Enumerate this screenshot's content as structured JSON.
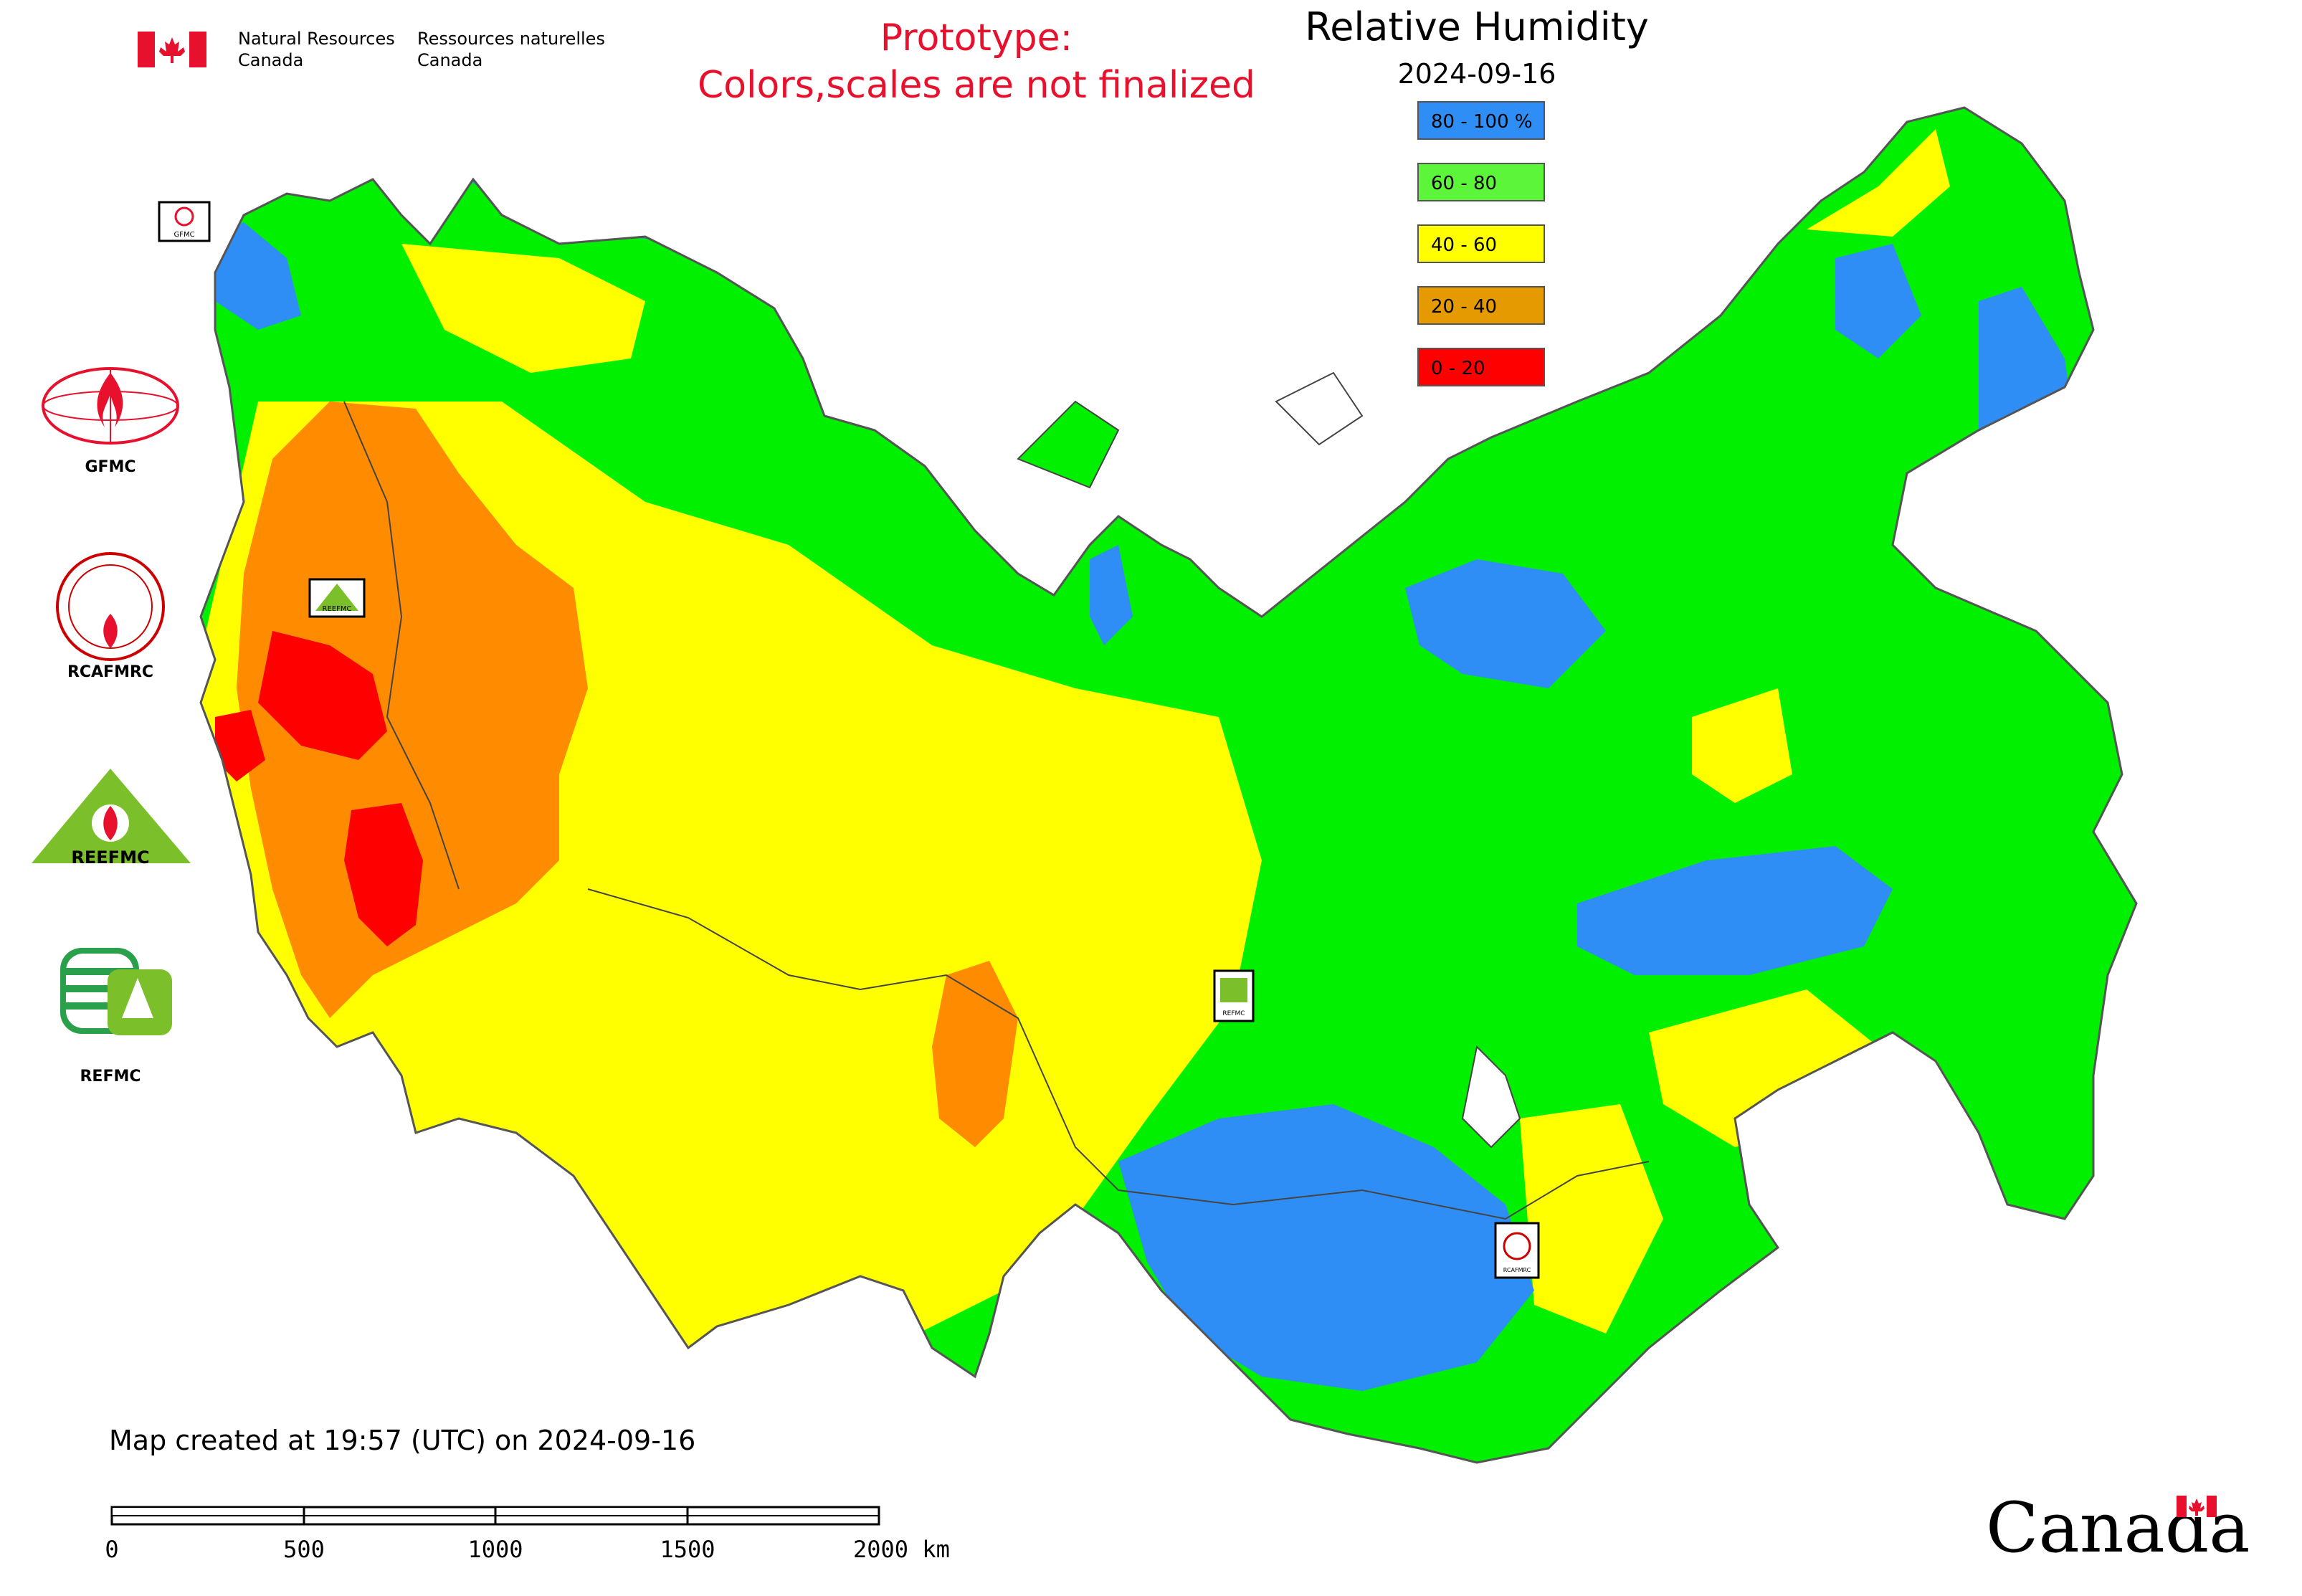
{
  "header": {
    "agency_en_line1": "Natural Resources",
    "agency_en_line2": "Canada",
    "agency_fr_line1": "Ressources naturelles",
    "agency_fr_line2": "Canada"
  },
  "prototype_notice": {
    "line1": "Prototype:",
    "line2": "Colors,scales are not finalized",
    "color": "#e8112d"
  },
  "legend": {
    "title": "Relative Humidity",
    "date": "2024-09-16",
    "items": [
      {
        "label": "80 - 100 %",
        "color": "#2f8ef5"
      },
      {
        "label": "60 - 80",
        "color": "#5cf53a"
      },
      {
        "label": "40 - 60",
        "color": "#ffff00"
      },
      {
        "label": "20 - 40",
        "color": "#e49a00"
      },
      {
        "label": "0 - 20",
        "color": "#ff0000"
      }
    ]
  },
  "map_colors": {
    "blue": "#2f8ef5",
    "green": "#00f000",
    "yellow": "#ffff00",
    "orange": "#ff8c00",
    "red": "#ff0000"
  },
  "side_logos": [
    {
      "name": "gfmc-logo",
      "label": "GFMC"
    },
    {
      "name": "rcafmrc-logo",
      "label": "RCAFMRC"
    },
    {
      "name": "reefmc-logo",
      "label": "REEFMC"
    },
    {
      "name": "refmc-logo",
      "label": "REFMC"
    }
  ],
  "map_markers": [
    {
      "name": "gfmc-marker",
      "label": "GFMC"
    },
    {
      "name": "reefmc-marker",
      "label": "REEFMC"
    },
    {
      "name": "refmc-marker",
      "label": "REFMC"
    },
    {
      "name": "rcafmrc-marker",
      "label": "RCAFMRC"
    }
  ],
  "footer": {
    "created_text": "Map created at 19:57 (UTC) on 2024-09-16",
    "scale_ticks": [
      "0",
      "500",
      "1000",
      "1500",
      "2000 km"
    ],
    "wordmark": "Canada"
  }
}
